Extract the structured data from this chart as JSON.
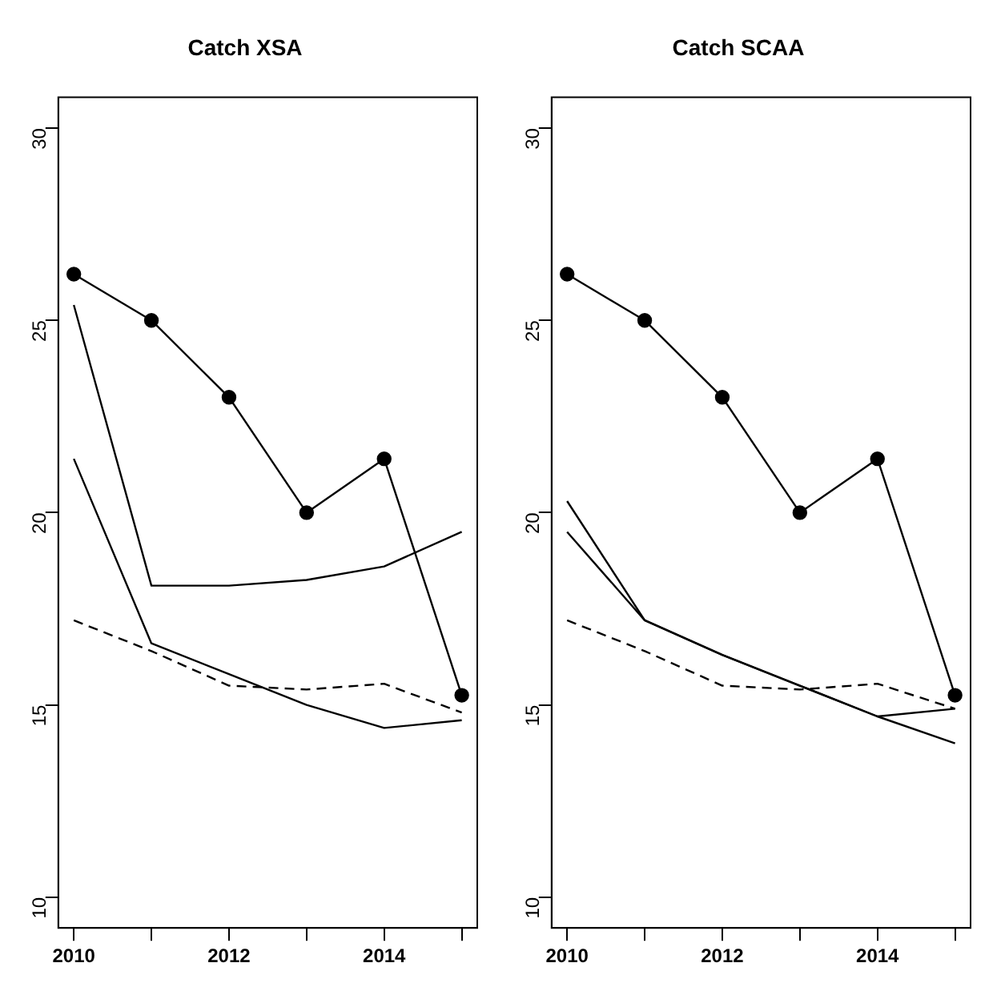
{
  "chart_data": [
    {
      "type": "line",
      "title": "Catch XSA",
      "x": [
        2010,
        2011,
        2012,
        2013,
        2014,
        2015
      ],
      "xlim": [
        2009.8,
        2015.2
      ],
      "xticks": [
        2010,
        {
          "value": 2011,
          "label": null
        },
        2012,
        {
          "value": 2013,
          "label": null
        },
        2014,
        {
          "value": 2015,
          "label": null
        }
      ],
      "ylim": [
        9.2,
        30.8
      ],
      "yticks": [
        10,
        15,
        20,
        25,
        30
      ],
      "series": [
        {
          "color": "#000000",
          "marker": "circle",
          "line_style": "solid",
          "values": [
            26.2,
            25.0,
            23.0,
            20.0,
            21.4,
            15.25
          ]
        },
        {
          "color": "#000000",
          "marker": "none",
          "line_style": "solid",
          "values": [
            25.4,
            18.1,
            18.1,
            18.25,
            18.6,
            19.5
          ]
        },
        {
          "color": "#000000",
          "marker": "none",
          "line_style": "solid",
          "values": [
            21.4,
            16.6,
            15.8,
            15.0,
            14.4,
            14.6
          ]
        },
        {
          "color": "#000000",
          "marker": "none",
          "line_style": "dashed",
          "values": [
            17.2,
            16.4,
            15.5,
            15.4,
            15.55,
            14.8
          ]
        }
      ]
    },
    {
      "type": "line",
      "title": "Catch SCAA",
      "x": [
        2010,
        2011,
        2012,
        2013,
        2014,
        2015
      ],
      "xlim": [
        2009.8,
        2015.2
      ],
      "xticks": [
        2010,
        {
          "value": 2011,
          "label": null
        },
        2012,
        {
          "value": 2013,
          "label": null
        },
        2014,
        {
          "value": 2015,
          "label": null
        }
      ],
      "ylim": [
        9.2,
        30.8
      ],
      "yticks": [
        10,
        15,
        20,
        25,
        30
      ],
      "series": [
        {
          "color": "#000000",
          "marker": "circle",
          "line_style": "solid",
          "values": [
            26.2,
            25.0,
            23.0,
            20.0,
            21.4,
            15.25
          ]
        },
        {
          "color": "#000000",
          "marker": "none",
          "line_style": "solid",
          "values": [
            20.3,
            17.2,
            16.3,
            15.5,
            14.7,
            14.9
          ]
        },
        {
          "color": "#000000",
          "marker": "none",
          "line_style": "solid",
          "values": [
            19.5,
            17.2,
            16.3,
            15.5,
            14.7,
            14.0
          ]
        },
        {
          "color": "#000000",
          "marker": "none",
          "line_style": "dashed",
          "values": [
            17.2,
            16.4,
            15.5,
            15.4,
            15.55,
            14.9
          ]
        }
      ]
    }
  ]
}
